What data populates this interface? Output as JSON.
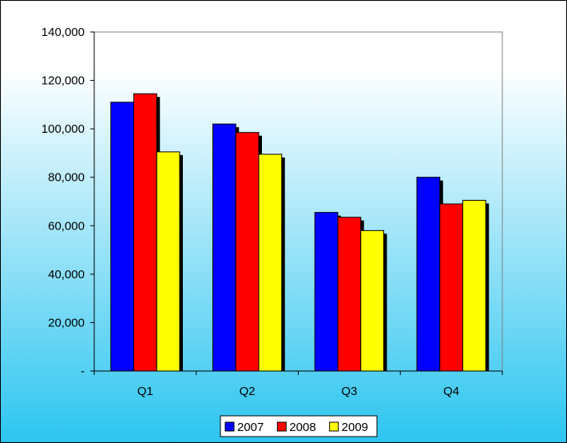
{
  "chart_data": {
    "type": "bar",
    "categories": [
      "Q1",
      "Q2",
      "Q3",
      "Q4"
    ],
    "series": [
      {
        "name": "2007",
        "values": [
          111000,
          102000,
          65500,
          80000
        ],
        "color": "#0000ff"
      },
      {
        "name": "2008",
        "values": [
          114500,
          98500,
          63500,
          69000
        ],
        "color": "#ff0000"
      },
      {
        "name": "2009",
        "values": [
          90500,
          89500,
          58000,
          70500
        ],
        "color": "#ffff00"
      }
    ],
    "y_ticks": [
      {
        "value": 0,
        "label": "-"
      },
      {
        "value": 20000,
        "label": "20,000"
      },
      {
        "value": 40000,
        "label": "40,000"
      },
      {
        "value": 60000,
        "label": "60,000"
      },
      {
        "value": 80000,
        "label": "80,000"
      },
      {
        "value": 100000,
        "label": "100,000"
      },
      {
        "value": 120000,
        "label": "120,000"
      },
      {
        "value": 140000,
        "label": "140,000"
      }
    ],
    "ylim": [
      0,
      140000
    ],
    "title": "",
    "xlabel": "",
    "ylabel": "",
    "grid": false,
    "legend_position": "bottom",
    "background_colors": {
      "top": "#ffffff",
      "bottom": "#2cc5f0"
    }
  }
}
